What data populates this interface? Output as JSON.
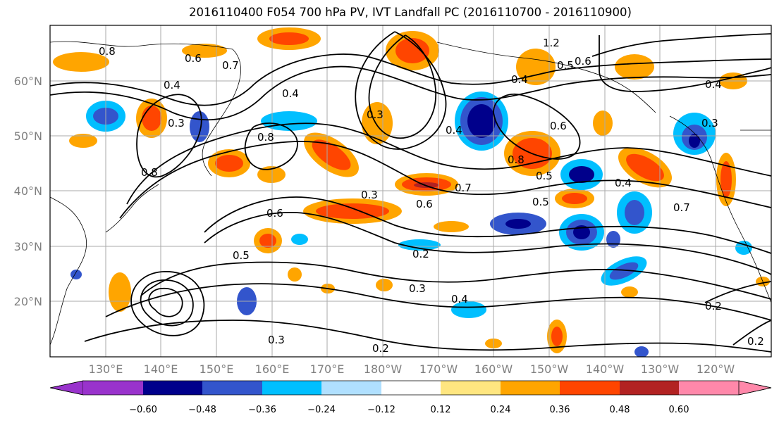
{
  "title": "2016110400 F054 700 hPa PV, IVT Landfall PC (2016110700 - 2016110900)",
  "map": {
    "lat_labels": [
      "60°N",
      "50°N",
      "40°N",
      "30°N",
      "20°N"
    ],
    "lon_labels": [
      "130°E",
      "140°E",
      "150°E",
      "160°E",
      "170°E",
      "180°W",
      "170°W",
      "160°W",
      "150°W",
      "140°W",
      "130°W",
      "120°W"
    ],
    "grid": true,
    "contour_color": "#000000",
    "contour_labels": [
      "0.6",
      "0.7",
      "0.4",
      "0.3",
      "0.8",
      "0.6",
      "0.3",
      "0.4",
      "0.5",
      "0.3",
      "0.6",
      "0.2",
      "0.3",
      "0.4",
      "0.2",
      "0.8",
      "0.7",
      "0.3",
      "0.5",
      "0.5",
      "0.6",
      "0.4",
      "0.4",
      "0.8",
      "1.2",
      "0.5",
      "0.6",
      "0.4",
      "0.7",
      "0.4",
      "0.3",
      "0.2",
      "0.8",
      "0.2"
    ]
  },
  "colorbar": {
    "ticks": [
      "−0.60",
      "−0.48",
      "−0.36",
      "−0.24",
      "−0.12",
      "0.12",
      "0.24",
      "0.36",
      "0.48",
      "0.60"
    ],
    "colors": [
      "#9933cc",
      "#00008b",
      "#3355cc",
      "#00bfff",
      "#b0e0ff",
      "#ffffff",
      "#ffe680",
      "#ffa500",
      "#ff4500",
      "#b22222",
      "#ff88aa"
    ],
    "extend": "both"
  }
}
